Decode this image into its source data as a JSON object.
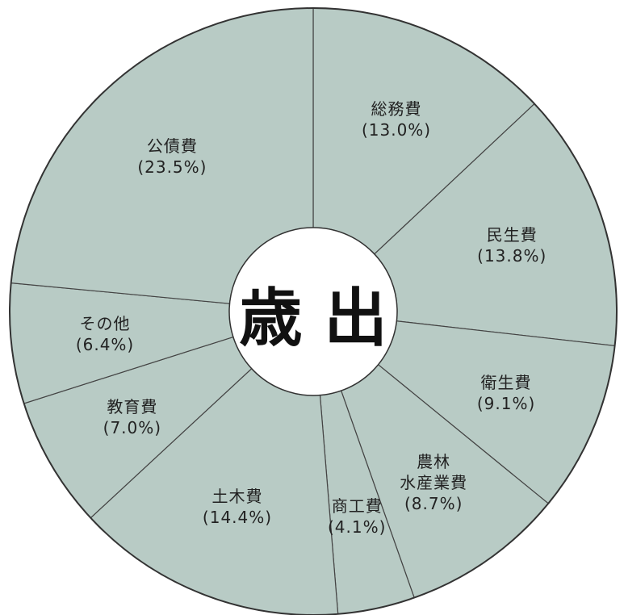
{
  "chart_data": {
    "type": "donut",
    "center_label": "歳 出",
    "categories": [
      "総務費",
      "民生費",
      "衛生費",
      "農林\n水産業費",
      "商工費",
      "土木費",
      "教育費",
      "その他",
      "公債費"
    ],
    "values": [
      13.0,
      13.8,
      9.1,
      8.7,
      4.1,
      14.4,
      7.0,
      6.4,
      23.5
    ],
    "value_labels": [
      "(13.0%)",
      "(13.8%)",
      "(9.1%)",
      "(8.7%)",
      "(4.1%)",
      "(14.4%)",
      "(7.0%)",
      "(6.4%)",
      "(23.5%)"
    ],
    "color": "#b8cbc5"
  }
}
